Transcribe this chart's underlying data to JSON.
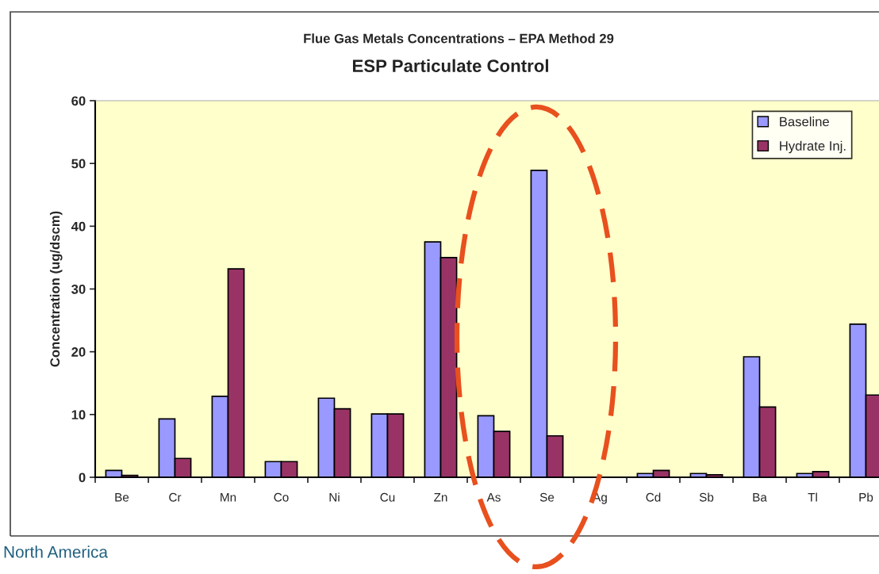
{
  "chart_data": {
    "type": "bar",
    "title": "Flue Gas Metals Concentrations – EPA Method 29",
    "subtitle": "ESP Particulate Control",
    "ylabel": "Concentration (ug/dscm)",
    "categories": [
      "Be",
      "Cr",
      "Mn",
      "Co",
      "Ni",
      "Cu",
      "Zn",
      "As",
      "Se",
      "Ag",
      "Cd",
      "Sb",
      "Ba",
      "Tl",
      "Pb"
    ],
    "series": [
      {
        "name": "Baseline",
        "color": "#9999ff",
        "values": [
          1.1,
          9.3,
          12.9,
          2.5,
          12.6,
          10.1,
          37.5,
          9.8,
          48.9,
          null,
          0.6,
          0.6,
          19.2,
          0.6,
          24.4
        ]
      },
      {
        "name": "Hydrate Inj.",
        "color": "#993366",
        "values": [
          0.3,
          3.0,
          33.2,
          2.5,
          10.9,
          10.1,
          35.0,
          7.3,
          6.6,
          null,
          1.1,
          0.4,
          11.2,
          0.9,
          13.1
        ]
      }
    ],
    "ylim": [
      0,
      60
    ],
    "yticks": [
      0,
      10,
      20,
      30,
      40,
      50,
      60
    ],
    "grid": false,
    "legend": "top right",
    "annotations": [
      "North America"
    ]
  }
}
